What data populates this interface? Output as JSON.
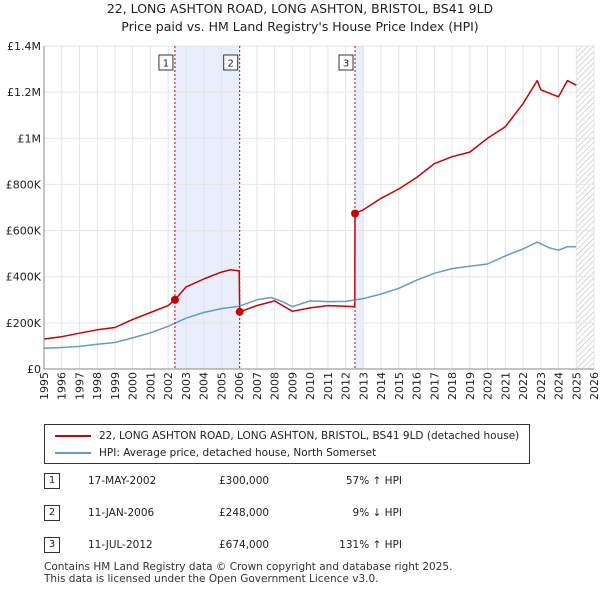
{
  "title_line1": "22, LONG ASHTON ROAD, LONG ASHTON, BRISTOL, BS41 9LD",
  "title_line2": "Price paid vs. HM Land Registry's House Price Index (HPI)",
  "colors": {
    "red": "#cc0000",
    "blue": "#6699cc",
    "band": "#e8eefb",
    "marker_line": "#cc0000",
    "hatch": "#bbbbbb"
  },
  "chart_data": {
    "type": "line",
    "title": "22, LONG ASHTON ROAD, LONG ASHTON, BRISTOL, BS41 9LD",
    "subtitle": "Price paid vs. HM Land Registry's House Price Index (HPI)",
    "xlabel": "",
    "ylabel": "",
    "xlim": [
      1995,
      2026
    ],
    "ylim": [
      0,
      1400000
    ],
    "x_ticks": [
      1995,
      1996,
      1997,
      1998,
      1999,
      2000,
      2001,
      2002,
      2003,
      2004,
      2005,
      2006,
      2007,
      2008,
      2009,
      2010,
      2011,
      2012,
      2013,
      2014,
      2015,
      2016,
      2017,
      2018,
      2019,
      2020,
      2021,
      2022,
      2023,
      2024,
      2025,
      2026
    ],
    "y_ticks": [
      {
        "value": 0,
        "label": "£0"
      },
      {
        "value": 200000,
        "label": "£200K"
      },
      {
        "value": 400000,
        "label": "£400K"
      },
      {
        "value": 600000,
        "label": "£600K"
      },
      {
        "value": 800000,
        "label": "£800K"
      },
      {
        "value": 1000000,
        "label": "£1M"
      },
      {
        "value": 1200000,
        "label": "£1.2M"
      },
      {
        "value": 1400000,
        "label": "£1.4M"
      }
    ],
    "grid": true,
    "shaded_ranges": [
      [
        2002.38,
        2006.03
      ],
      [
        2012.53,
        2013.0
      ]
    ],
    "hatch_from": 2025.0,
    "series": [
      {
        "name": "22, LONG ASHTON ROAD, LONG ASHTON, BRISTOL, BS41 9LD (detached house)",
        "color": "#cc0000",
        "x": [
          1995.0,
          1996.0,
          1997.0,
          1998.0,
          1999.0,
          2000.0,
          2001.0,
          2002.0,
          2002.38,
          2003.0,
          2004.0,
          2005.0,
          2005.5,
          2006.0,
          2006.03,
          2007.0,
          2008.0,
          2009.0,
          2010.0,
          2011.0,
          2012.0,
          2012.52,
          2012.53,
          2013.0,
          2014.0,
          2015.0,
          2016.0,
          2017.0,
          2018.0,
          2019.0,
          2020.0,
          2021.0,
          2022.0,
          2022.8,
          2023.0,
          2024.0,
          2024.5,
          2025.0
        ],
        "values": [
          130000,
          140000,
          155000,
          170000,
          180000,
          215000,
          245000,
          275000,
          300000,
          355000,
          390000,
          420000,
          430000,
          425000,
          248000,
          275000,
          295000,
          250000,
          265000,
          275000,
          272000,
          270000,
          674000,
          690000,
          740000,
          780000,
          830000,
          890000,
          920000,
          940000,
          1000000,
          1050000,
          1150000,
          1250000,
          1210000,
          1180000,
          1250000,
          1230000
        ]
      },
      {
        "name": "HPI: Average price, detached house, North Somerset",
        "color": "#6699cc",
        "x": [
          1995.0,
          1996.0,
          1997.0,
          1998.0,
          1999.0,
          2000.0,
          2001.0,
          2002.0,
          2003.0,
          2004.0,
          2005.0,
          2006.0,
          2007.0,
          2007.8,
          2008.5,
          2009.0,
          2010.0,
          2011.0,
          2012.0,
          2013.0,
          2014.0,
          2015.0,
          2016.0,
          2017.0,
          2018.0,
          2019.0,
          2020.0,
          2021.0,
          2022.0,
          2022.8,
          2023.5,
          2024.0,
          2024.5,
          2025.0
        ],
        "values": [
          90000,
          93000,
          98000,
          107000,
          115000,
          135000,
          157000,
          185000,
          220000,
          245000,
          262000,
          272000,
          300000,
          310000,
          290000,
          270000,
          295000,
          292000,
          293000,
          305000,
          325000,
          350000,
          385000,
          415000,
          435000,
          445000,
          455000,
          490000,
          520000,
          550000,
          525000,
          515000,
          530000,
          530000
        ]
      }
    ],
    "sales": [
      {
        "num": "1",
        "x": 2002.38,
        "value": 300000
      },
      {
        "num": "2",
        "x": 2006.03,
        "value": 248000
      },
      {
        "num": "3",
        "x": 2012.53,
        "value": 674000
      }
    ]
  },
  "legend": [
    {
      "label": "22, LONG ASHTON ROAD, LONG ASHTON, BRISTOL, BS41 9LD (detached house)",
      "color": "#cc0000"
    },
    {
      "label": "HPI: Average price, detached house, North Somerset",
      "color": "#6699cc"
    }
  ],
  "sales_table": [
    {
      "num": "1",
      "date": "17-MAY-2002",
      "price": "£300,000",
      "hpi": "57% ↑ HPI"
    },
    {
      "num": "2",
      "date": "11-JAN-2006",
      "price": "£248,000",
      "hpi": "9% ↓ HPI"
    },
    {
      "num": "3",
      "date": "11-JUL-2012",
      "price": "£674,000",
      "hpi": "131% ↑ HPI"
    }
  ],
  "footer_line1": "Contains HM Land Registry data © Crown copyright and database right 2025.",
  "footer_line2": "This data is licensed under the Open Government Licence v3.0."
}
